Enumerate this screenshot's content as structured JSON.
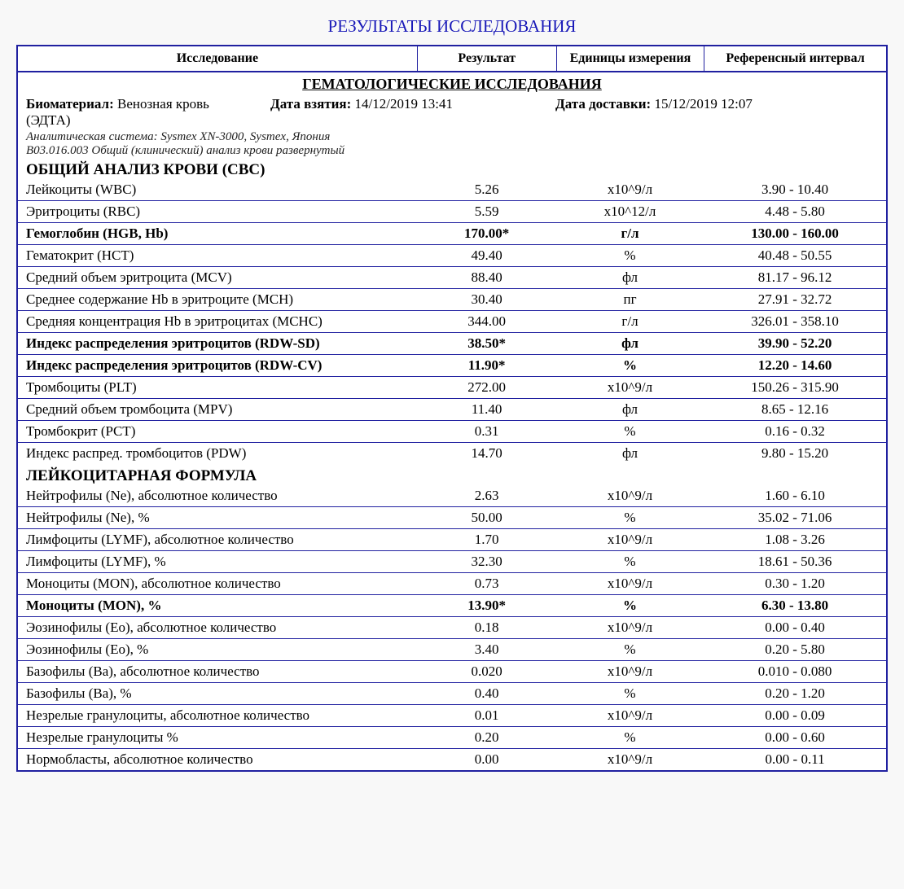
{
  "title": "РЕЗУЛЬТАТЫ ИССЛЕДОВАНИЯ",
  "colors": {
    "border": "#2020a0",
    "title": "#1818b8",
    "bg": "#ffffff"
  },
  "header": {
    "col1": "Исследование",
    "col2": "Результат",
    "col3": "Единицы измерения",
    "col4": "Референсный интервал"
  },
  "section": "ГЕМАТОЛОГИЧЕСКИЕ ИССЛЕДОВАНИЯ",
  "meta": {
    "biomaterial_label": "Биоматериал:",
    "biomaterial_value": "Венозная кровь (ЭДТА)",
    "taken_label": "Дата взятия:",
    "taken_value": "14/12/2019 13:41",
    "delivered_label": "Дата доставки:",
    "delivered_value": "15/12/2019 12:07",
    "analyzer": "Аналитическая система: Sysmex XN-3000, Sysmex, Япония",
    "code": "B03.016.003 Общий (клинический) анализ крови развернутый"
  },
  "group1_title": "ОБЩИЙ АНАЛИЗ КРОВИ (CBC)",
  "group1": [
    {
      "name": "Лейкоциты (WBC)",
      "result": "5.26",
      "unit": "x10^9/л",
      "ref": "3.90 - 10.40",
      "bold": false
    },
    {
      "name": "Эритроциты (RBC)",
      "result": "5.59",
      "unit": "x10^12/л",
      "ref": "4.48 - 5.80",
      "bold": false
    },
    {
      "name": "Гемоглобин (HGB, Hb)",
      "result": "170.00*",
      "unit": "г/л",
      "ref": "130.00 - 160.00",
      "bold": true
    },
    {
      "name": "Гематокрит (HCT)",
      "result": "49.40",
      "unit": "%",
      "ref": "40.48 - 50.55",
      "bold": false
    },
    {
      "name": "Средний объем эритроцита (MCV)",
      "result": "88.40",
      "unit": "фл",
      "ref": "81.17 - 96.12",
      "bold": false
    },
    {
      "name": "Среднее содержание Hb в эритроците (MCH)",
      "result": "30.40",
      "unit": "пг",
      "ref": "27.91 - 32.72",
      "bold": false
    },
    {
      "name": "Средняя концентрация Hb в эритроцитах (MCHC)",
      "result": "344.00",
      "unit": "г/л",
      "ref": "326.01 - 358.10",
      "bold": false
    },
    {
      "name": "Индекс распределения эритроцитов (RDW-SD)",
      "result": "38.50*",
      "unit": "фл",
      "ref": "39.90 - 52.20",
      "bold": true
    },
    {
      "name": "Индекс распределения эритроцитов (RDW-CV)",
      "result": "11.90*",
      "unit": "%",
      "ref": "12.20 - 14.60",
      "bold": true
    },
    {
      "name": "Тромбоциты (PLT)",
      "result": "272.00",
      "unit": "x10^9/л",
      "ref": "150.26 - 315.90",
      "bold": false
    },
    {
      "name": "Средний объем тромбоцита (MPV)",
      "result": "11.40",
      "unit": "фл",
      "ref": "8.65 - 12.16",
      "bold": false
    },
    {
      "name": "Тромбокрит (PCT)",
      "result": "0.31",
      "unit": "%",
      "ref": "0.16 - 0.32",
      "bold": false
    },
    {
      "name": "Индекс распред. тромбоцитов (PDW)",
      "result": "14.70",
      "unit": "фл",
      "ref": "9.80 - 15.20",
      "bold": false
    }
  ],
  "group2_title": "ЛЕЙКОЦИТАРНАЯ ФОРМУЛА",
  "group2": [
    {
      "name": "Нейтрофилы (Ne), абсолютное количество",
      "result": "2.63",
      "unit": "x10^9/л",
      "ref": "1.60 - 6.10",
      "bold": false
    },
    {
      "name": "Нейтрофилы (Ne), %",
      "result": "50.00",
      "unit": "%",
      "ref": "35.02 - 71.06",
      "bold": false
    },
    {
      "name": "Лимфоциты (LYMF), абсолютное количество",
      "result": "1.70",
      "unit": "x10^9/л",
      "ref": "1.08 - 3.26",
      "bold": false
    },
    {
      "name": "Лимфоциты (LYMF), %",
      "result": "32.30",
      "unit": "%",
      "ref": "18.61 - 50.36",
      "bold": false
    },
    {
      "name": "Моноциты (MON), абсолютное количество",
      "result": "0.73",
      "unit": "x10^9/л",
      "ref": "0.30 - 1.20",
      "bold": false
    },
    {
      "name": "Моноциты (MON), %",
      "result": "13.90*",
      "unit": "%",
      "ref": "6.30 - 13.80",
      "bold": true
    },
    {
      "name": "Эозинофилы (Eo), абсолютное количество",
      "result": "0.18",
      "unit": "x10^9/л",
      "ref": "0.00 - 0.40",
      "bold": false
    },
    {
      "name": "Эозинофилы (Eo), %",
      "result": "3.40",
      "unit": "%",
      "ref": "0.20 - 5.80",
      "bold": false
    },
    {
      "name": "Базофилы (Ba), абсолютное количество",
      "result": "0.020",
      "unit": "x10^9/л",
      "ref": "0.010 - 0.080",
      "bold": false
    },
    {
      "name": "Базофилы (Ba), %",
      "result": "0.40",
      "unit": "%",
      "ref": "0.20 - 1.20",
      "bold": false
    },
    {
      "name": "Незрелые гранулоциты, абсолютное количество",
      "result": "0.01",
      "unit": "x10^9/л",
      "ref": "0.00 - 0.09",
      "bold": false
    },
    {
      "name": "Незрелые гранулоциты %",
      "result": "0.20",
      "unit": "%",
      "ref": "0.00 - 0.60",
      "bold": false
    },
    {
      "name": "Нормобласты, абсолютное количество",
      "result": "0.00",
      "unit": "x10^9/л",
      "ref": "0.00 - 0.11",
      "bold": false
    }
  ]
}
